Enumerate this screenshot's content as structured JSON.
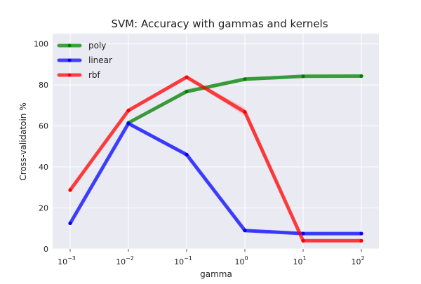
{
  "chart_data": {
    "type": "line",
    "title": "SVM: Accuracy with gammas and kernels",
    "xlabel": "gamma",
    "ylabel": "Cross-validatoin %",
    "x_scale": "log",
    "x": [
      0.001,
      0.01,
      0.1,
      1,
      10,
      100
    ],
    "x_tick_labels": [
      {
        "base": "10",
        "exp": "−3"
      },
      {
        "base": "10",
        "exp": "−2"
      },
      {
        "base": "10",
        "exp": "−1"
      },
      {
        "base": "10",
        "exp": "0"
      },
      {
        "base": "10",
        "exp": "1"
      },
      {
        "base": "10",
        "exp": "2"
      }
    ],
    "ylim": [
      0,
      105
    ],
    "y_ticks": [
      0,
      20,
      40,
      60,
      80,
      100
    ],
    "grid": true,
    "legend_position": "top-left",
    "background_color": "#eaeaf2",
    "series": [
      {
        "name": "poly",
        "color": "#008000",
        "values": [
          null,
          61.5,
          76.8,
          82.8,
          84.2,
          84.3
        ],
        "band": [
          [
            null,
            null
          ],
          [
            61.0,
            62.0
          ],
          [
            75.8,
            77.8
          ],
          [
            81.8,
            83.8
          ],
          [
            83.9,
            84.5
          ],
          [
            84.0,
            84.6
          ]
        ]
      },
      {
        "name": "linear",
        "color": "#0000ff",
        "values": [
          12.5,
          61.2,
          46.0,
          9.0,
          7.5,
          7.5
        ],
        "band": [
          [
            12.0,
            13.0
          ],
          [
            60.7,
            61.7
          ],
          [
            45.5,
            46.5
          ],
          [
            8.5,
            9.5
          ],
          [
            7.0,
            8.0
          ],
          [
            7.0,
            8.0
          ]
        ]
      },
      {
        "name": "rbf",
        "color": "#ff0000",
        "values": [
          28.7,
          67.5,
          83.8,
          66.8,
          4.0,
          4.0
        ],
        "band": [
          [
            28.2,
            29.2
          ],
          [
            67.0,
            68.0
          ],
          [
            83.3,
            84.3
          ],
          [
            64.8,
            68.8
          ],
          [
            3.5,
            4.5
          ],
          [
            3.5,
            4.5
          ]
        ]
      }
    ]
  }
}
